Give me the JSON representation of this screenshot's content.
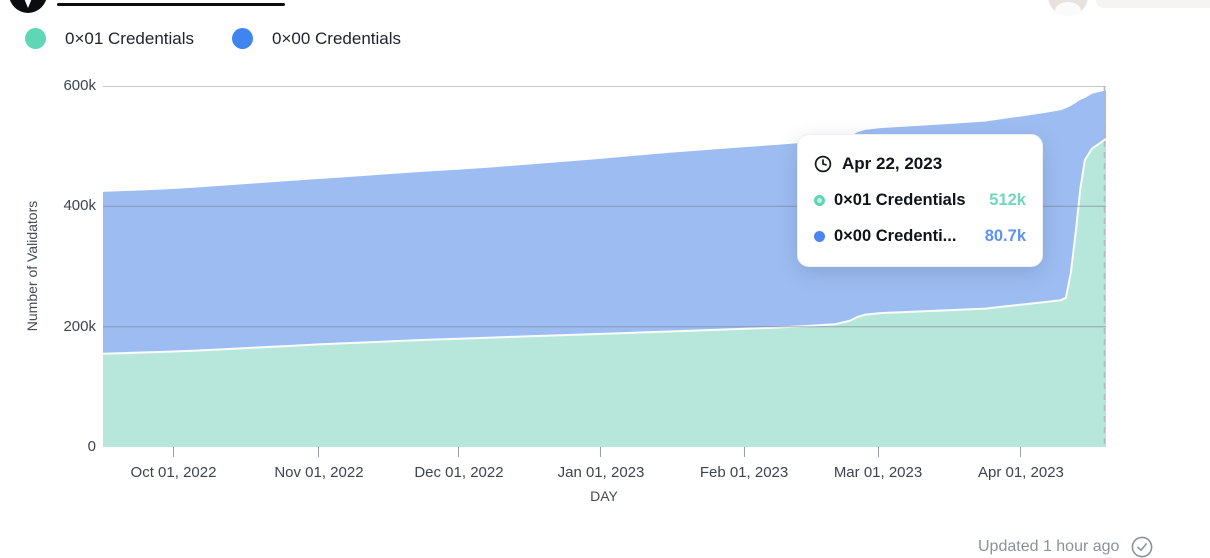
{
  "header": {
    "logo": "site-logo-cutoff",
    "avatar": "user-avatar-cutoff"
  },
  "legend": {
    "items": [
      {
        "label": "0×01 Credentials",
        "color": "#5fd6b4"
      },
      {
        "label": "0×00 Credentials",
        "color": "#4084ef"
      }
    ]
  },
  "tooltip": {
    "date": "Apr 22, 2023",
    "rows": [
      {
        "label": "0×01 Credentials",
        "value": "512k",
        "color": "#72d6bd",
        "marker": "teal-ring"
      },
      {
        "label": "0×00 Credenti...",
        "value": "80.7k",
        "color": "#5e93f3",
        "marker": "blue-dot"
      }
    ]
  },
  "footer": {
    "updated": "Updated 1 hour ago"
  },
  "chart_data": {
    "type": "area",
    "stacked": true,
    "xlabel": "DAY",
    "ylabel": "Number of Validators",
    "ylim": [
      0,
      600000
    ],
    "grid": "horizontal",
    "legend_position": "top-left",
    "hover_date": "Apr 22, 2023",
    "hover_values": {
      "0×01 Credentials": "512k",
      "0×00 Credentials": "80.7k"
    },
    "colors": {
      "area_01": "#b7e7db",
      "area_00": "#9dbdf2",
      "boundary": "#fbfdfc",
      "gridline": "#7c818a",
      "hoverline": "#b4bac2"
    },
    "series": [
      {
        "name": "0×01 Credentials",
        "color": "#5fd6b4",
        "position": "bottom"
      },
      {
        "name": "0×00 Credentials",
        "color": "#4084ef",
        "position": "top"
      }
    ],
    "yticks": [
      {
        "label": "0",
        "v": 0
      },
      {
        "label": "200k",
        "v": 200
      },
      {
        "label": "400k",
        "v": 400
      },
      {
        "label": "600k",
        "v": 600
      }
    ],
    "xticks": [
      {
        "label": "Oct 01, 2022",
        "f": 0.0703
      },
      {
        "label": "Nov 01, 2022",
        "f": 0.2153
      },
      {
        "label": "Dec 01, 2022",
        "f": 0.3549
      },
      {
        "label": "Jan 01, 2023",
        "f": 0.4965
      },
      {
        "label": "Feb 01, 2023",
        "f": 0.6391
      },
      {
        "label": "Mar 01, 2023",
        "f": 0.7727
      },
      {
        "label": "Apr 01, 2023",
        "f": 0.9152
      }
    ],
    "x_domain": [
      "Sep 16, 2022",
      "Apr 22, 2023"
    ],
    "points_units": "thousands of validators; f = fraction across x axis; v01 = 0×01 Credentials; v00 = 0×00 Credentials (stacked on top)",
    "points": [
      {
        "f": 0.0,
        "v01": 155.0,
        "v00": 269.0
      },
      {
        "f": 0.03,
        "v01": 156.5,
        "v00": 269.5
      },
      {
        "f": 0.06,
        "v01": 158.0,
        "v00": 270.0
      },
      {
        "f": 0.09,
        "v01": 160.0,
        "v00": 271.0
      },
      {
        "f": 0.12,
        "v01": 162.5,
        "v00": 272.0
      },
      {
        "f": 0.15,
        "v01": 165.0,
        "v00": 273.0
      },
      {
        "f": 0.18,
        "v01": 167.5,
        "v00": 274.0
      },
      {
        "f": 0.215,
        "v01": 170.5,
        "v00": 275.0
      },
      {
        "f": 0.25,
        "v01": 173.0,
        "v00": 276.5
      },
      {
        "f": 0.285,
        "v01": 175.5,
        "v00": 278.0
      },
      {
        "f": 0.32,
        "v01": 178.0,
        "v00": 279.5
      },
      {
        "f": 0.355,
        "v01": 180.0,
        "v00": 281.0
      },
      {
        "f": 0.39,
        "v01": 182.0,
        "v00": 283.0
      },
      {
        "f": 0.425,
        "v01": 184.0,
        "v00": 285.5
      },
      {
        "f": 0.46,
        "v01": 186.0,
        "v00": 288.0
      },
      {
        "f": 0.497,
        "v01": 188.0,
        "v00": 291.0
      },
      {
        "f": 0.53,
        "v01": 190.0,
        "v00": 294.0
      },
      {
        "f": 0.565,
        "v01": 192.0,
        "v00": 297.0
      },
      {
        "f": 0.6,
        "v01": 194.0,
        "v00": 299.5
      },
      {
        "f": 0.64,
        "v01": 196.5,
        "v00": 302.0
      },
      {
        "f": 0.67,
        "v01": 198.5,
        "v00": 303.5
      },
      {
        "f": 0.7,
        "v01": 201.0,
        "v00": 305.0
      },
      {
        "f": 0.73,
        "v01": 204.0,
        "v00": 306.0
      },
      {
        "f": 0.745,
        "v01": 210.0,
        "v00": 306.5
      },
      {
        "f": 0.752,
        "v01": 216.0,
        "v00": 307.0
      },
      {
        "f": 0.76,
        "v01": 220.0,
        "v00": 307.0
      },
      {
        "f": 0.775,
        "v01": 222.5,
        "v00": 307.5
      },
      {
        "f": 0.81,
        "v01": 225.0,
        "v00": 308.5
      },
      {
        "f": 0.845,
        "v01": 227.5,
        "v00": 309.5
      },
      {
        "f": 0.88,
        "v01": 230.0,
        "v00": 311.0
      },
      {
        "f": 0.9,
        "v01": 234.0,
        "v00": 312.0
      },
      {
        "f": 0.918,
        "v01": 237.0,
        "v00": 313.0
      },
      {
        "f": 0.94,
        "v01": 241.0,
        "v00": 314.5
      },
      {
        "f": 0.955,
        "v01": 244.0,
        "v00": 316.0
      },
      {
        "f": 0.96,
        "v01": 248.0,
        "v00": 315.0
      },
      {
        "f": 0.965,
        "v01": 290.0,
        "v00": 277.0
      },
      {
        "f": 0.97,
        "v01": 360.0,
        "v00": 212.0
      },
      {
        "f": 0.9745,
        "v01": 430.0,
        "v00": 147.0
      },
      {
        "f": 0.979,
        "v01": 477.0,
        "v00": 103.0
      },
      {
        "f": 0.986,
        "v01": 496.0,
        "v00": 91.0
      },
      {
        "f": 0.993,
        "v01": 504.0,
        "v00": 86.0
      },
      {
        "f": 1.0,
        "v01": 512.0,
        "v00": 80.7
      }
    ]
  }
}
